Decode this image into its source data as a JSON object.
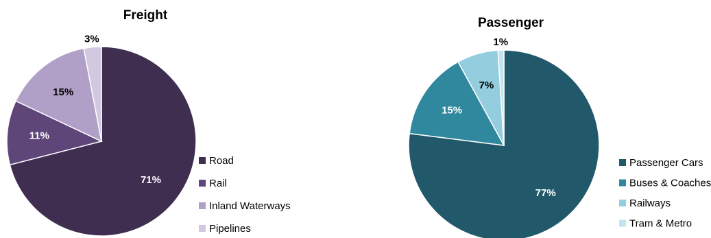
{
  "chart_data": [
    {
      "type": "pie",
      "title": "Freight",
      "slices": [
        {
          "label": "Road",
          "value": 71,
          "display": "71%",
          "color": "#3f2e50"
        },
        {
          "label": "Rail",
          "value": 11,
          "display": "11%",
          "color": "#5f4678"
        },
        {
          "label": "Inland Waterways",
          "value": 15,
          "display": "15%",
          "color": "#b09fc6"
        },
        {
          "label": "Pipelines",
          "value": 3,
          "display": "3%",
          "color": "#d2c8e0"
        }
      ],
      "legend_position": "right"
    },
    {
      "type": "pie",
      "title": "Passenger",
      "slices": [
        {
          "label": "Passenger Cars",
          "value": 77,
          "display": "77%",
          "color": "#22596a"
        },
        {
          "label": "Buses & Coaches",
          "value": 15,
          "display": "15%",
          "color": "#2f889e"
        },
        {
          "label": "Railways",
          "value": 7,
          "display": "7%",
          "color": "#94cddd"
        },
        {
          "label": "Tram & Metro",
          "value": 1,
          "display": "1%",
          "color": "#c1e4ee"
        }
      ],
      "legend_position": "right"
    }
  ]
}
